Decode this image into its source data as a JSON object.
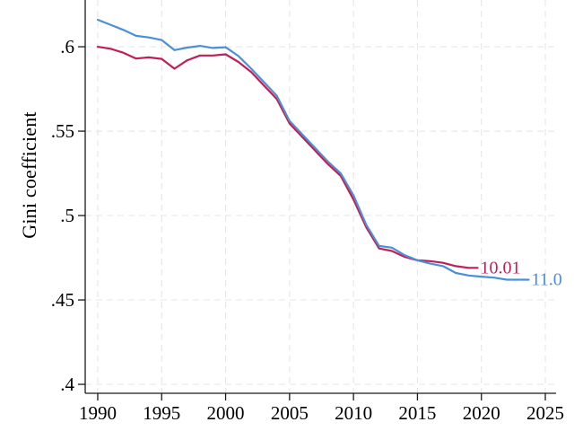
{
  "page": {
    "background": "#ffffff",
    "text_color": "#000000",
    "grid_color": "#e4e4e4",
    "axis_color": "#1a1a1a"
  },
  "chart_data": {
    "type": "line",
    "title": "",
    "xlabel": "",
    "ylabel": "Gini coefficient",
    "grid": true,
    "legend_position": "none",
    "xlim": [
      1989.02,
      2025.84
    ],
    "ylim": [
      0.3947,
      0.6277
    ],
    "x_ticks": [
      1990,
      1995,
      2000,
      2005,
      2010,
      2015,
      2020,
      2025
    ],
    "x_tick_labels": [
      "1990",
      "1995",
      "2000",
      "2005",
      "2010",
      "2015",
      "2020",
      "2025"
    ],
    "y_ticks": [
      0.4,
      0.45,
      0.5,
      0.55,
      0.6
    ],
    "y_tick_labels": [
      ".4",
      ".45",
      ".5",
      ".55",
      ".6"
    ],
    "series": [
      {
        "name": "10.01",
        "end_label": "10.01",
        "color": "#c01e56",
        "x": [
          1990,
          1991,
          1992,
          1993,
          1994,
          1995,
          1996,
          1997,
          1998,
          1999,
          2000,
          2001,
          2002,
          2003,
          2004,
          2005,
          2006,
          2007,
          2008,
          2009,
          2010,
          2011,
          2012,
          2013,
          2014,
          2015,
          2016,
          2017,
          2018,
          2019
        ],
        "values": [
          0.6,
          0.5988,
          0.5965,
          0.593,
          0.5937,
          0.5928,
          0.587,
          0.592,
          0.5948,
          0.5948,
          0.5955,
          0.591,
          0.585,
          0.577,
          0.569,
          0.5545,
          0.5465,
          0.5385,
          0.5305,
          0.5235,
          0.5095,
          0.493,
          0.4805,
          0.479,
          0.4755,
          0.4735,
          0.473,
          0.472,
          0.47,
          0.469
        ]
      },
      {
        "name": "11.0",
        "end_label": "11.0",
        "color": "#4a90d9",
        "x": [
          1990,
          1991,
          1992,
          1993,
          1994,
          1995,
          1996,
          1997,
          1998,
          1999,
          2000,
          2001,
          2002,
          2003,
          2004,
          2005,
          2006,
          2007,
          2008,
          2009,
          2010,
          2011,
          2012,
          2013,
          2014,
          2015,
          2016,
          2017,
          2018,
          2019,
          2020,
          2021,
          2022,
          2023
        ],
        "values": [
          0.616,
          0.613,
          0.61,
          0.6065,
          0.6055,
          0.604,
          0.598,
          0.5995,
          0.6005,
          0.5993,
          0.5997,
          0.5945,
          0.587,
          0.579,
          0.571,
          0.556,
          0.548,
          0.54,
          0.532,
          0.525,
          0.512,
          0.4945,
          0.482,
          0.481,
          0.4765,
          0.4735,
          0.4715,
          0.47,
          0.466,
          0.4645,
          0.4638,
          0.4632,
          0.462,
          0.462
        ]
      }
    ]
  }
}
